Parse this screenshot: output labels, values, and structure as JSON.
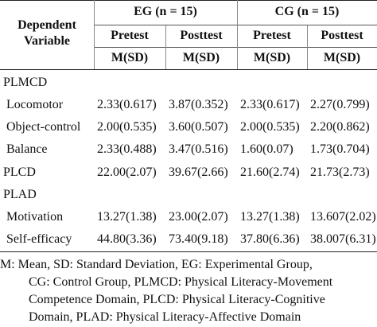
{
  "header": {
    "dependent_variable": [
      "Dependent",
      "Variable"
    ],
    "groups": [
      "EG (n = 15)",
      "CG (n = 15)"
    ],
    "tests": [
      "Pretest",
      "Posttest",
      "Pretest",
      "Posttest"
    ],
    "stats": [
      "M(SD)",
      "M(SD)",
      "M(SD)",
      "M(SD)"
    ]
  },
  "rows": [
    {
      "label": "PLMCD",
      "section": true,
      "values": [
        "",
        "",
        "",
        ""
      ]
    },
    {
      "label": "Locomotor",
      "section": false,
      "values": [
        "2.33(0.617)",
        "3.87(0.352)",
        "2.33(0.617)",
        "2.27(0.799)"
      ]
    },
    {
      "label": "Object-control",
      "section": false,
      "values": [
        "2.00(0.535)",
        "3.60(0.507)",
        "2.00(0.535)",
        "2.20(0.862)"
      ]
    },
    {
      "label": "Balance",
      "section": false,
      "values": [
        "2.33(0.488)",
        "3.47(0.516)",
        "1.60(0.07)",
        "1.73(0.704)"
      ]
    },
    {
      "label": "PLCD",
      "section": true,
      "values": [
        "22.00(2.07)",
        "39.67(2.66)",
        "21.60(2.74)",
        "21.73(2.73)"
      ]
    },
    {
      "label": "PLAD",
      "section": true,
      "values": [
        "",
        "",
        "",
        ""
      ]
    },
    {
      "label": "Motivation",
      "section": false,
      "values": [
        "13.27(1.38)",
        "23.00(2.07)",
        "13.27(1.38)",
        "13.607(2.02)"
      ]
    },
    {
      "label": "Self-efficacy",
      "section": false,
      "values": [
        "44.80(3.36)",
        "73.40(9.18)",
        "37.80(6.36)",
        "38.007(6.31)"
      ]
    }
  ],
  "footnote": [
    "M: Mean, SD: Standard Deviation, EG: Experimental Group,",
    "CG: Control Group, PLMCD: Physical Literacy-Movement",
    "Competence Domain, PLCD: Physical Literacy-Cognitive",
    "Domain, PLAD: Physical Literacy-Affective Domain"
  ]
}
